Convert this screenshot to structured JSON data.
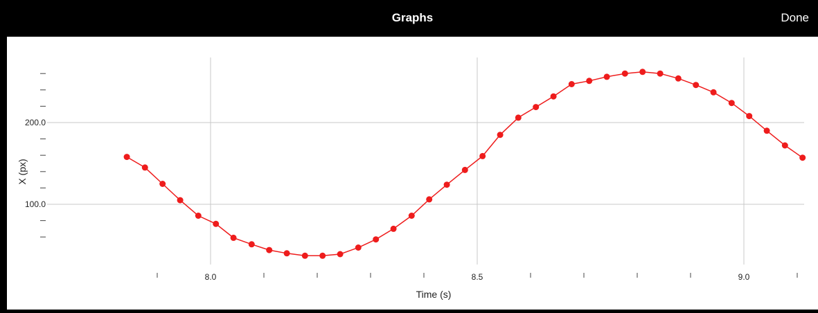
{
  "navbar": {
    "title": "Graphs",
    "done_label": "Done"
  },
  "colors": {
    "navbar_bg": "#000000",
    "series": "#ee1c1c",
    "grid": "#c8c8c8"
  },
  "chart_data": {
    "type": "scatter",
    "title": "",
    "xlabel": "Time (s)",
    "ylabel": "X (px)",
    "xlim": [
      7.8,
      9.2
    ],
    "ylim": [
      40,
      270
    ],
    "x_major_ticks": [
      8.0,
      8.5,
      9.0
    ],
    "x_tick_labels": [
      "8.0",
      "8.5",
      "9.0"
    ],
    "x_minor_ticks": [
      7.9,
      8.0,
      8.1,
      8.2,
      8.3,
      8.4,
      8.5,
      8.6,
      8.7,
      8.8,
      8.9,
      9.0,
      9.1
    ],
    "y_major_ticks": [
      100,
      200
    ],
    "y_tick_labels": [
      "100.0",
      "200.0"
    ],
    "y_minor_ticks": [
      60,
      80,
      100,
      120,
      140,
      160,
      180,
      200,
      220,
      240,
      260
    ],
    "grid": true,
    "connect_points": true,
    "series": [
      {
        "x": [
          7.843,
          7.877,
          7.91,
          7.943,
          7.977,
          8.01,
          8.043,
          8.077,
          8.11,
          8.143,
          8.177,
          8.21,
          8.243,
          8.277,
          8.31,
          8.343,
          8.377,
          8.41,
          8.443,
          8.477,
          8.51,
          8.543,
          8.577,
          8.61,
          8.643,
          8.677,
          8.71,
          8.743,
          8.777,
          8.81,
          8.843,
          8.877,
          8.91,
          8.943,
          8.977,
          9.01,
          9.043,
          9.077,
          9.11
        ],
        "y": [
          158,
          145,
          125,
          105,
          86,
          76,
          59,
          51,
          44,
          40,
          37,
          37,
          39,
          47,
          57,
          70,
          86,
          106,
          124,
          142,
          159,
          185,
          206,
          219,
          232,
          247,
          251,
          256,
          260,
          262,
          260,
          254,
          246,
          237,
          224,
          208,
          190,
          172,
          157
        ]
      }
    ]
  }
}
